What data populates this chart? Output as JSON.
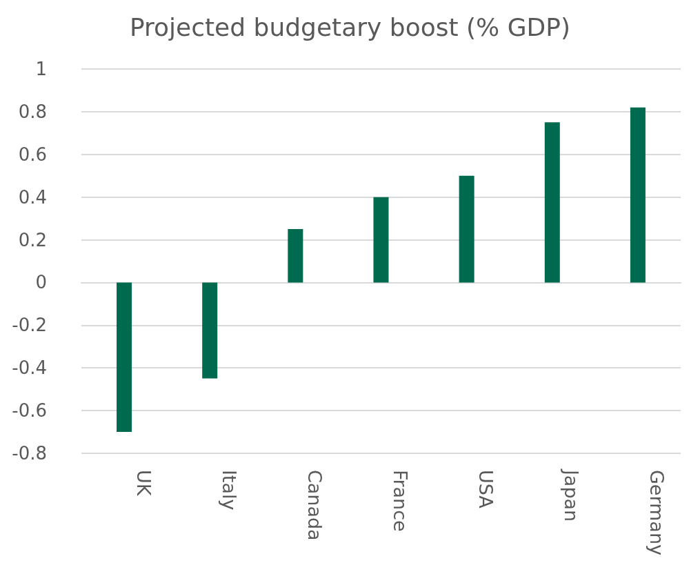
{
  "chart_data": {
    "type": "bar",
    "title": "Projected budgetary boost (% GDP)",
    "categories": [
      "UK",
      "Italy",
      "Canada",
      "France",
      "USA",
      "Japan",
      "Germany"
    ],
    "values": [
      -0.7,
      -0.45,
      0.25,
      0.4,
      0.5,
      0.75,
      0.82
    ],
    "color": "#006a4e",
    "ylim": [
      -0.8,
      1
    ],
    "yticks": [
      -0.8,
      -0.6,
      -0.4,
      -0.2,
      0,
      0.2,
      0.4,
      0.6,
      0.8,
      1
    ],
    "grid": "y"
  }
}
